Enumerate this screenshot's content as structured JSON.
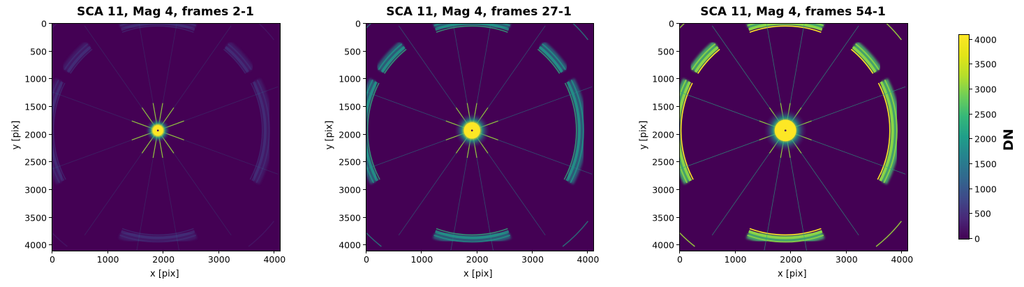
{
  "figure": {
    "panels": [
      {
        "title": "SCA 11, Mag 4, frames 2-1",
        "xlabel": "x [pix]",
        "ylabel": "y [pix]",
        "intensity": 0.08
      },
      {
        "title": "SCA 11, Mag 4, frames 27-1",
        "xlabel": "x [pix]",
        "ylabel": "y [pix]",
        "intensity": 0.6
      },
      {
        "title": "SCA 11, Mag 4, frames 54-1",
        "xlabel": "x [pix]",
        "ylabel": "y [pix]",
        "intensity": 1.0
      }
    ],
    "xticks": [
      "0",
      "1000",
      "2000",
      "3000",
      "4000"
    ],
    "yticks": [
      "0",
      "500",
      "1000",
      "1500",
      "2000",
      "2500",
      "3000",
      "3500",
      "4000"
    ],
    "colorbar": {
      "label": "DN",
      "ticks": [
        "0",
        "500",
        "1000",
        "1500",
        "2000",
        "2500",
        "3000",
        "3500",
        "4000"
      ],
      "colormap": "viridis",
      "vmin": 0,
      "vmax": 4096
    }
  },
  "chart_data": [
    {
      "type": "heatmap",
      "title": "SCA 11, Mag 4, frames 2-1",
      "xlabel": "x [pix]",
      "ylabel": "y [pix]",
      "xlim": [
        0,
        4096
      ],
      "ylim": [
        4096,
        0
      ],
      "xticks": [
        0,
        1000,
        2000,
        3000,
        4000
      ],
      "yticks": [
        0,
        500,
        1000,
        1500,
        2000,
        2500,
        3000,
        3500,
        4000
      ],
      "colormap": "viridis",
      "clim": [
        0,
        4096
      ],
      "colorbar_label": "DN",
      "features": {
        "bright_source_center": [
          1900,
          1920
        ],
        "ring_radius_approx": 1900,
        "ring_brightness": "very faint",
        "diffraction_spikes": 12
      }
    },
    {
      "type": "heatmap",
      "title": "SCA 11, Mag 4, frames 27-1",
      "xlabel": "x [pix]",
      "ylabel": "y [pix]",
      "xlim": [
        0,
        4096
      ],
      "ylim": [
        4096,
        0
      ],
      "xticks": [
        0,
        1000,
        2000,
        3000,
        4000
      ],
      "yticks": [
        0,
        500,
        1000,
        1500,
        2000,
        2500,
        3000,
        3500,
        4000
      ],
      "colormap": "viridis",
      "clim": [
        0,
        4096
      ],
      "colorbar_label": "DN",
      "features": {
        "bright_source_center": [
          1900,
          1920
        ],
        "ring_radius_approx": 1900,
        "ring_brightness": "moderate (teal/green, yellow inner edge)",
        "diffraction_spikes": 12
      }
    },
    {
      "type": "heatmap",
      "title": "SCA 11, Mag 4, frames 54-1",
      "xlabel": "x [pix]",
      "ylabel": "y [pix]",
      "xlim": [
        0,
        4096
      ],
      "ylim": [
        4096,
        0
      ],
      "xticks": [
        0,
        1000,
        2000,
        3000,
        4000
      ],
      "yticks": [
        0,
        500,
        1000,
        1500,
        2000,
        2500,
        3000,
        3500,
        4000
      ],
      "colormap": "viridis",
      "clim": [
        0,
        4096
      ],
      "colorbar_label": "DN",
      "features": {
        "bright_source_center": [
          1900,
          1920
        ],
        "ring_radius_approx": 1900,
        "ring_brightness": "bright (green/yellow)",
        "diffraction_spikes": 12
      }
    }
  ]
}
